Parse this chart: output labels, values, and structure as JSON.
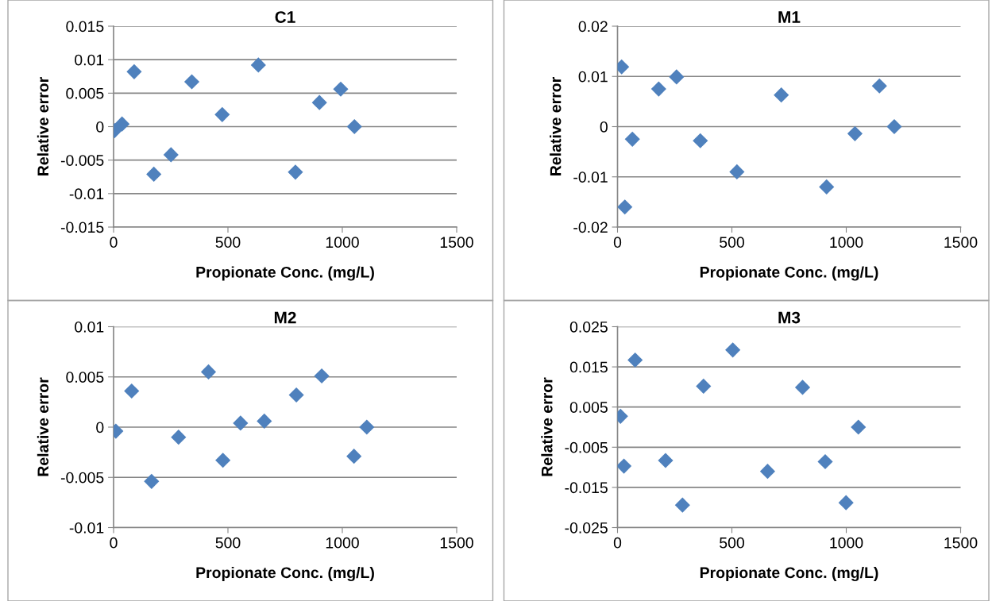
{
  "chart_data": [
    {
      "type": "scatter",
      "title": "C1",
      "xlabel": "Propionate Conc. (mg/L)",
      "ylabel": "Relative error",
      "marker": "diamond",
      "grid": "y",
      "legend": false,
      "xlim": [
        0,
        1500
      ],
      "xticks": [
        0,
        500,
        1000,
        1500
      ],
      "ylim": [
        -0.015,
        0.015
      ],
      "yticks": [
        -0.015,
        -0.01,
        -0.005,
        0,
        0.005,
        0.01,
        0.015
      ],
      "series": [
        {
          "color": "#4f81bd",
          "x": [
            4,
            37,
            90,
            176,
            251,
            342,
            475,
            633,
            795,
            900,
            993,
            1053
          ],
          "values": [
            -0.0006,
            0.0004,
            0.0082,
            -0.0071,
            -0.0042,
            0.0067,
            0.0018,
            0.0092,
            -0.0068,
            0.0036,
            0.0056,
            0
          ]
        }
      ]
    },
    {
      "type": "scatter",
      "title": "M1",
      "xlabel": "Propionate Conc. (mg/L)",
      "ylabel": "Relative error",
      "marker": "diamond",
      "grid": "y",
      "legend": false,
      "xlim": [
        0,
        1500
      ],
      "xticks": [
        0,
        500,
        1000,
        1500
      ],
      "ylim": [
        -0.02,
        0.02
      ],
      "yticks": [
        -0.02,
        -0.01,
        0,
        0.01,
        0.02
      ],
      "series": [
        {
          "color": "#4f81bd",
          "x": [
            18,
            32,
            65,
            180,
            258,
            362,
            522,
            716,
            914,
            1038,
            1145,
            1210
          ],
          "values": [
            0.0119,
            -0.016,
            -0.0025,
            0.0075,
            0.0099,
            -0.0028,
            -0.009,
            0.0063,
            -0.012,
            -0.0014,
            0.0081,
            0
          ]
        }
      ]
    },
    {
      "type": "scatter",
      "title": "M2",
      "xlabel": "Propionate Conc. (mg/L)",
      "ylabel": "Relative error",
      "marker": "diamond",
      "grid": "y",
      "legend": false,
      "xlim": [
        0,
        1500
      ],
      "xticks": [
        0,
        500,
        1000,
        1500
      ],
      "ylim": [
        -0.01,
        0.01
      ],
      "yticks": [
        -0.01,
        -0.005,
        0,
        0.005,
        0.01
      ],
      "series": [
        {
          "color": "#4f81bd",
          "x": [
            10,
            79,
            166,
            284,
            415,
            478,
            555,
            659,
            799,
            910,
            1051,
            1107
          ],
          "values": [
            -0.0004,
            0.0036,
            -0.0054,
            -0.001,
            0.0055,
            -0.0033,
            0.0004,
            0.0006,
            0.0032,
            0.0051,
            -0.0029,
            0
          ]
        }
      ]
    },
    {
      "type": "scatter",
      "title": "M3",
      "xlabel": "Propionate Conc. (mg/L)",
      "ylabel": "Relative error",
      "marker": "diamond",
      "grid": "y",
      "legend": false,
      "xlim": [
        0,
        1500
      ],
      "xticks": [
        0,
        500,
        1000,
        1500
      ],
      "ylim": [
        -0.025,
        0.025
      ],
      "yticks": [
        -0.025,
        -0.015,
        -0.005,
        0.005,
        0.015,
        0.025
      ],
      "series": [
        {
          "color": "#4f81bd",
          "x": [
            13,
            28,
            77,
            210,
            284,
            376,
            504,
            656,
            809,
            908,
            999,
            1053
          ],
          "values": [
            0.0027,
            -0.0097,
            0.0167,
            -0.0083,
            -0.0194,
            0.0102,
            0.0192,
            -0.011,
            0.0099,
            -0.0086,
            -0.0188,
            0
          ]
        }
      ]
    }
  ]
}
